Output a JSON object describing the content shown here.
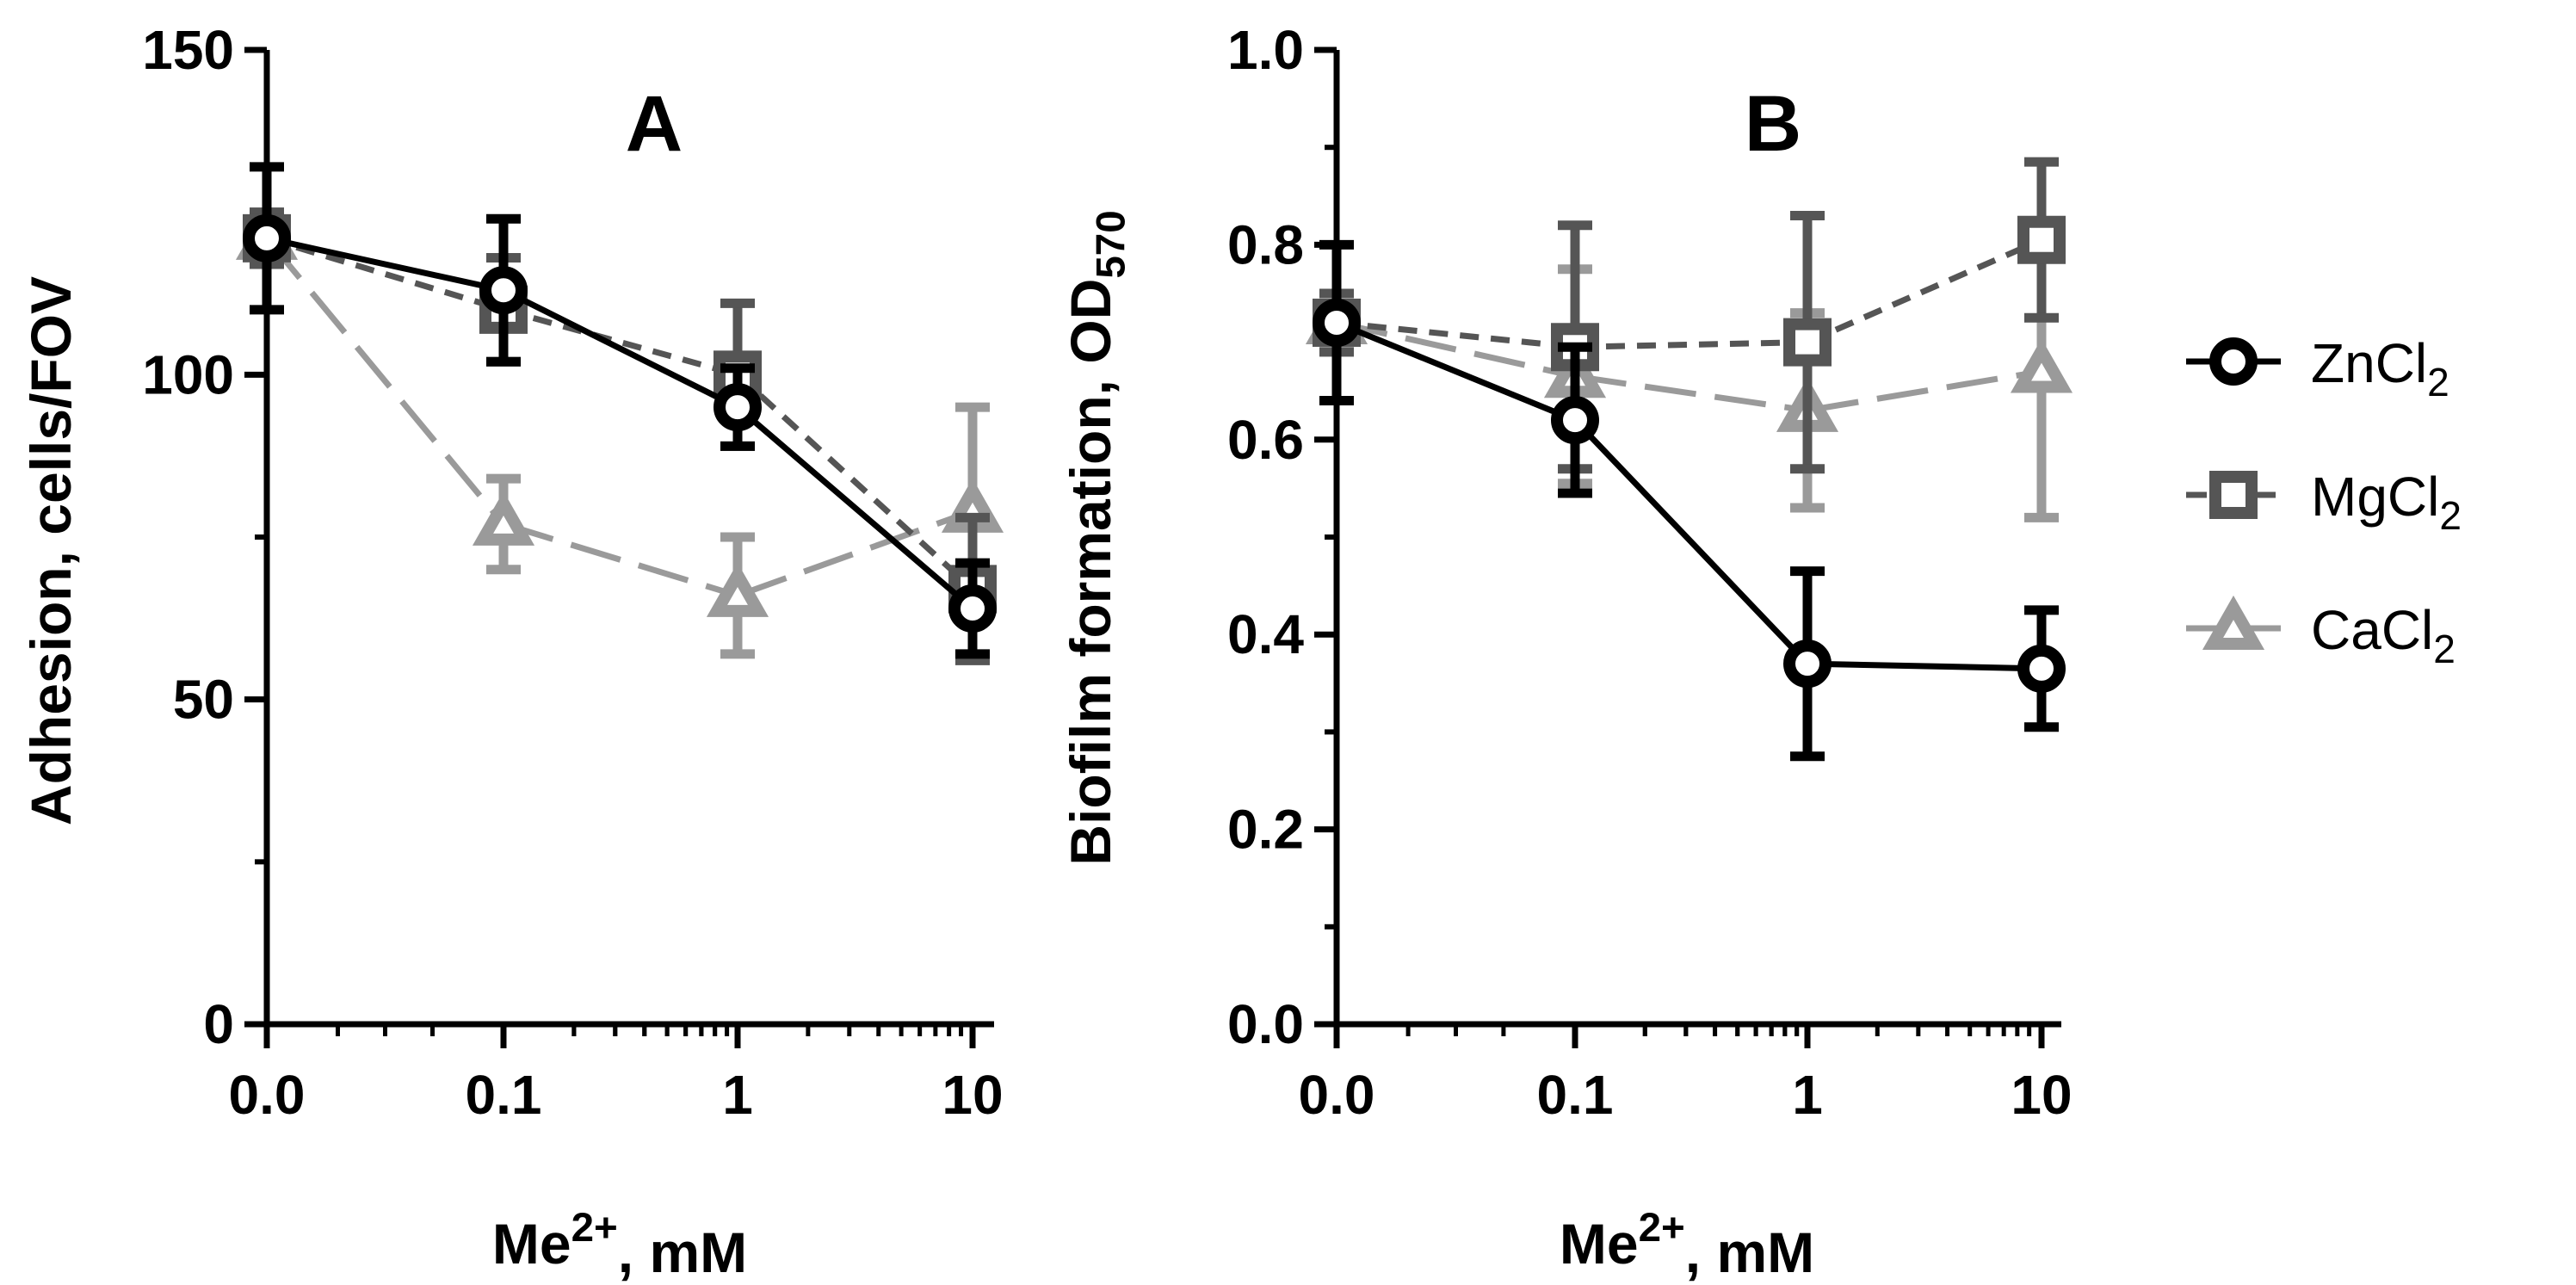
{
  "chart_data": [
    {
      "type": "line",
      "panel_label": "A",
      "xlabel_base": "Me",
      "xlabel_sup": "2+",
      "xlabel_suffix": ", mM",
      "ylabel": "Adhesion, cells/FOV",
      "x_scale": "log",
      "x_tick_labels": [
        "0.0",
        "0.1",
        "1",
        "10"
      ],
      "y_tick_labels": [
        "0",
        "50",
        "100",
        "150"
      ],
      "ylim": [
        0,
        150
      ],
      "y_ticks": [
        0,
        50,
        100,
        150
      ],
      "series": [
        {
          "name": "ZnCl2",
          "color": "#000000",
          "marker": "circle",
          "dash": "solid",
          "values": [
            121,
            113,
            95,
            64
          ],
          "errors": [
            11,
            11,
            6,
            7
          ]
        },
        {
          "name": "MgCl2",
          "color": "#555555",
          "marker": "square",
          "dash": "dashed",
          "values": [
            121,
            110,
            100,
            67
          ],
          "errors": [
            4,
            8,
            11,
            11
          ]
        },
        {
          "name": "CaCl2",
          "color": "#9a9a9a",
          "marker": "triangle",
          "dash": "longdash",
          "values": [
            121,
            77,
            66,
            79
          ],
          "errors": [
            4,
            7,
            9,
            16
          ]
        }
      ]
    },
    {
      "type": "line",
      "panel_label": "B",
      "xlabel_base": "Me",
      "xlabel_sup": "2+",
      "xlabel_suffix": ", mM",
      "ylabel_base": "Biofilm formation, OD",
      "ylabel_sub": "570",
      "x_scale": "log",
      "x_tick_labels": [
        "0.0",
        "0.1",
        "1",
        "10"
      ],
      "y_tick_labels": [
        "0.0",
        "0.2",
        "0.4",
        "0.6",
        "0.8",
        "1.0"
      ],
      "ylim": [
        0,
        1.0
      ],
      "y_ticks": [
        0,
        0.2,
        0.4,
        0.6,
        0.8,
        1.0
      ],
      "series": [
        {
          "name": "ZnCl2",
          "color": "#000000",
          "marker": "circle",
          "dash": "solid",
          "values": [
            0.72,
            0.62,
            0.37,
            0.365
          ],
          "errors": [
            0.08,
            0.075,
            0.095,
            0.06
          ]
        },
        {
          "name": "MgCl2",
          "color": "#555555",
          "marker": "square",
          "dash": "dashed",
          "values": [
            0.72,
            0.695,
            0.7,
            0.805
          ],
          "errors": [
            0.03,
            0.125,
            0.13,
            0.08
          ]
        },
        {
          "name": "CaCl2",
          "color": "#9a9a9a",
          "marker": "triangle",
          "dash": "longdash",
          "values": [
            0.72,
            0.665,
            0.63,
            0.67
          ],
          "errors": [
            0.03,
            0.11,
            0.1,
            0.15
          ]
        }
      ]
    }
  ],
  "legend": {
    "position": "right",
    "items": [
      {
        "base": "ZnCl",
        "sub": "2",
        "color": "#000000",
        "marker": "circle",
        "dash": "solid"
      },
      {
        "base": "MgCl",
        "sub": "2",
        "color": "#555555",
        "marker": "square",
        "dash": "dashed"
      },
      {
        "base": "CaCl",
        "sub": "2",
        "color": "#9a9a9a",
        "marker": "triangle",
        "dash": "longdash"
      }
    ]
  }
}
